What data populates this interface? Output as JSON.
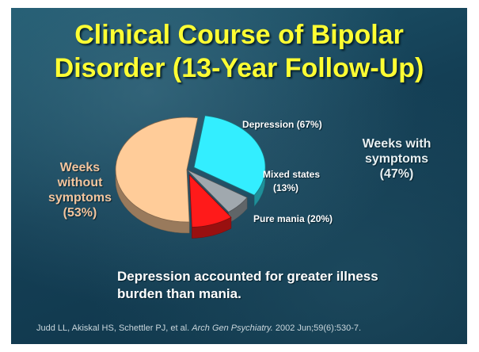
{
  "title_line1": "Clinical Course of Bipolar",
  "title_line2": "Disorder (13-Year Follow-Up)",
  "chart_data": {
    "type": "pie",
    "slices": [
      {
        "label": "Weeks without symptoms (53%)",
        "value": 53,
        "color": "#ffcc99"
      },
      {
        "label": "Depression (67%)",
        "value": 31.5,
        "color": "#33eeff"
      },
      {
        "label": "Mixed states (13%)",
        "value": 6.1,
        "color": "#a0a8ae"
      },
      {
        "label": "Pure mania (20%)",
        "value": 9.4,
        "color": "#ff1a1a"
      }
    ]
  },
  "labels": {
    "depression": "Depression (67%)",
    "mixed_line1": "Mixed states",
    "mixed_line2": "(13%)",
    "mania": "Pure mania (20%)",
    "without_line1": "Weeks",
    "without_line2": "without",
    "without_line3": "symptoms",
    "without_line4": "(53%)",
    "with_line1": "Weeks with",
    "with_line2": "symptoms",
    "with_line3": "(47%)"
  },
  "note_line1": "Depression accounted for greater illness",
  "note_line2": "burden than mania.",
  "citation": {
    "authors": "Judd LL, Akiskal HS, Schettler PJ, et al.",
    "journal": "Arch Gen Psychiatry.",
    "details": "2002 Jun;59(6):530-7."
  }
}
